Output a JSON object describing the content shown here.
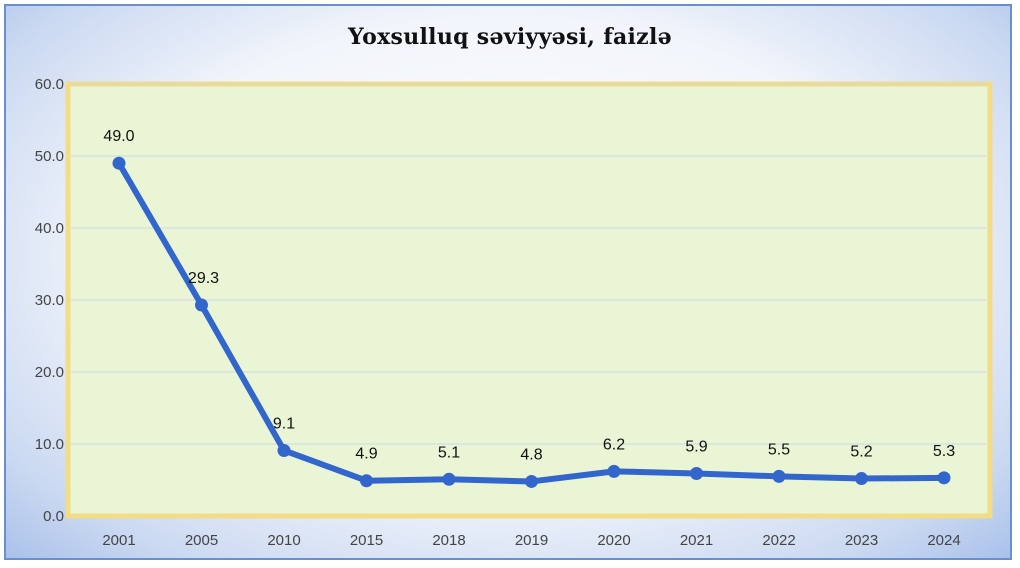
{
  "chart_data": {
    "type": "line",
    "title": "Yoxsulluq  səviyyəsi, faizlə",
    "xlabel": "",
    "ylabel": "",
    "categories": [
      "2001",
      "2005",
      "2010",
      "2015",
      "2018",
      "2019",
      "2020",
      "2021",
      "2022",
      "2023",
      "2024"
    ],
    "series": [
      {
        "values": [
          49.0,
          29.3,
          9.1,
          4.9,
          5.1,
          4.8,
          6.2,
          5.9,
          5.5,
          5.2,
          5.3
        ],
        "color": "#3366cc"
      }
    ],
    "data_labels": [
      "49.0",
      "29.3",
      "9.1",
      "4.9",
      "5.1",
      "4.8",
      "6.2",
      "5.9",
      "5.5",
      "5.2",
      "5.3"
    ],
    "y_ticks": [
      "0.0",
      "10.0",
      "20.0",
      "30.0",
      "40.0",
      "50.0",
      "60.0"
    ],
    "ylim": [
      0,
      60
    ],
    "grid": true,
    "plot_background": "#eaf5d6",
    "plot_border": "#f2dc86"
  }
}
